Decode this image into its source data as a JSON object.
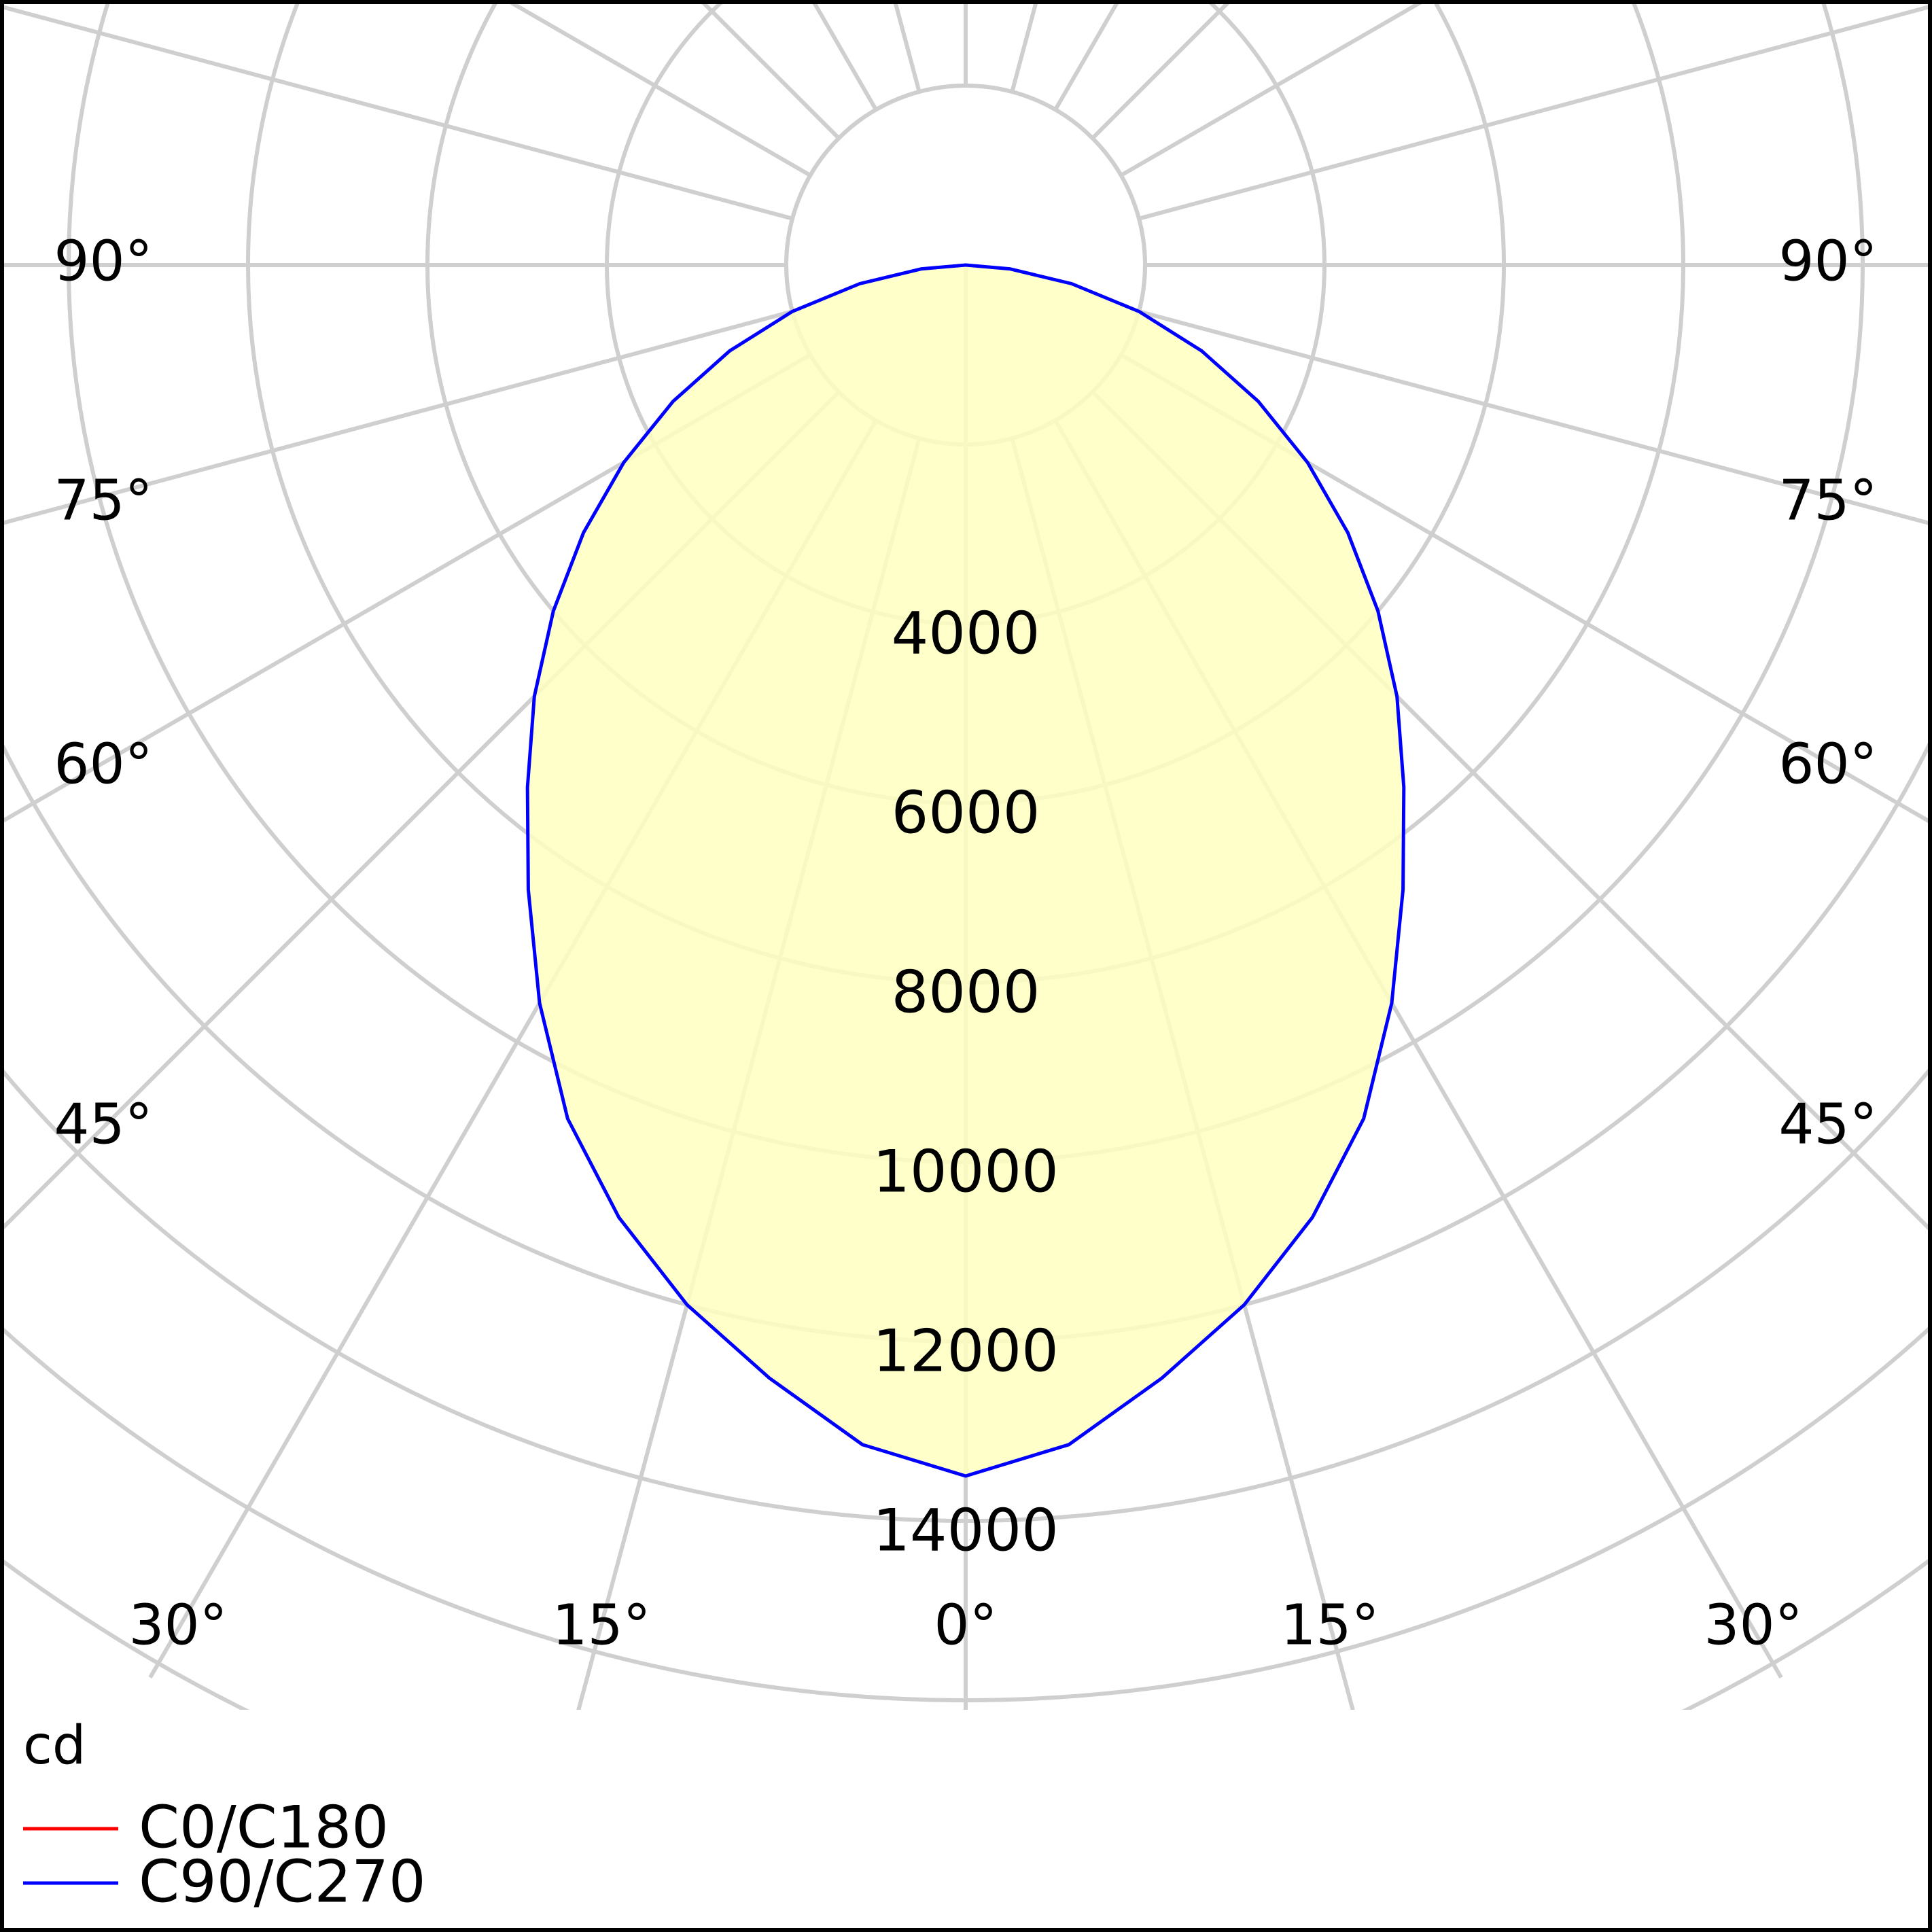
{
  "chart_data": {
    "type": "polar",
    "unit": "cd",
    "radial_ticks": [
      4000,
      6000,
      8000,
      10000,
      12000,
      14000
    ],
    "radial_tick_labels": [
      "4000",
      "6000",
      "8000",
      "10000",
      "12000",
      "14000"
    ],
    "angle_labels_left": [
      "90°",
      "75°",
      "60°",
      "45°",
      "30°",
      "15°"
    ],
    "angle_labels_center": "0°",
    "angle_labels_right": [
      "15°",
      "30°",
      "45°",
      "60°",
      "75°",
      "90°"
    ],
    "grid": true,
    "legend_position": "bottom-left",
    "fill_color": "#ffffc0",
    "series": [
      {
        "name": "C0/C180",
        "color": "#ff0000",
        "visible_curve": false,
        "points": []
      },
      {
        "name": "C90/C270",
        "color": "#0000ff",
        "points": [
          {
            "angle": 0,
            "value": 13500
          },
          {
            "angle": 5,
            "value": 13200
          },
          {
            "angle": 10,
            "value": 12600
          },
          {
            "angle": 15,
            "value": 12000
          },
          {
            "angle": 20,
            "value": 11300
          },
          {
            "angle": 25,
            "value": 10500
          },
          {
            "angle": 30,
            "value": 9500
          },
          {
            "angle": 35,
            "value": 8500
          },
          {
            "angle": 40,
            "value": 7600
          },
          {
            "angle": 45,
            "value": 6800
          },
          {
            "angle": 50,
            "value": 6000
          },
          {
            "angle": 55,
            "value": 5200
          },
          {
            "angle": 60,
            "value": 4400
          },
          {
            "angle": 65,
            "value": 3600
          },
          {
            "angle": 70,
            "value": 2800
          },
          {
            "angle": 75,
            "value": 2000
          },
          {
            "angle": 80,
            "value": 1200
          },
          {
            "angle": 85,
            "value": 500
          },
          {
            "angle": 90,
            "value": 0
          }
        ]
      }
    ]
  }
}
